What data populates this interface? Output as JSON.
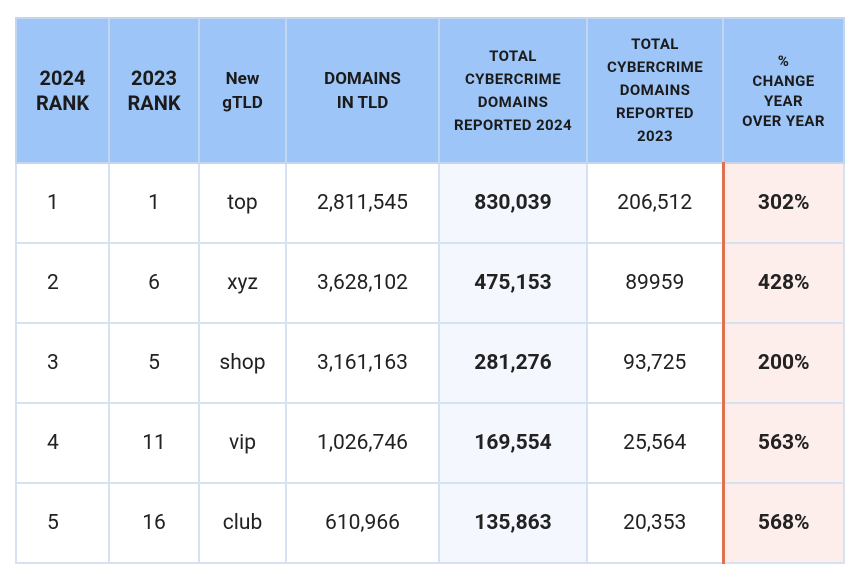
{
  "table": {
    "header": [
      "2024\nRANK",
      "2023\nRANK",
      "New\ngTLD",
      "DOMAINS\nIN TLD",
      "TOTAL\nCYBERCRIME\nDOMAINS\nREPORTED 2024",
      "TOTAL\nCYBERCRIME\nDOMAINS\nREPORTED\n2023",
      "%\nCHANGE\nYEAR\nOVER YEAR"
    ],
    "rows": [
      [
        "1",
        "1",
        "top",
        "2,811,545",
        "830,039",
        "206,512",
        "302%"
      ],
      [
        "2",
        "6",
        "xyz",
        "3,628,102",
        "475,153",
        "89959",
        "428%"
      ],
      [
        "3",
        "5",
        "shop",
        "3,161,163",
        "281,276",
        "93,725",
        "200%"
      ],
      [
        "4",
        "11",
        "vip",
        "1,026,746",
        "169,554",
        "25,564",
        "563%"
      ],
      [
        "5",
        "16",
        "club",
        "610,966",
        "135,863",
        "20,353",
        "568%"
      ]
    ]
  }
}
